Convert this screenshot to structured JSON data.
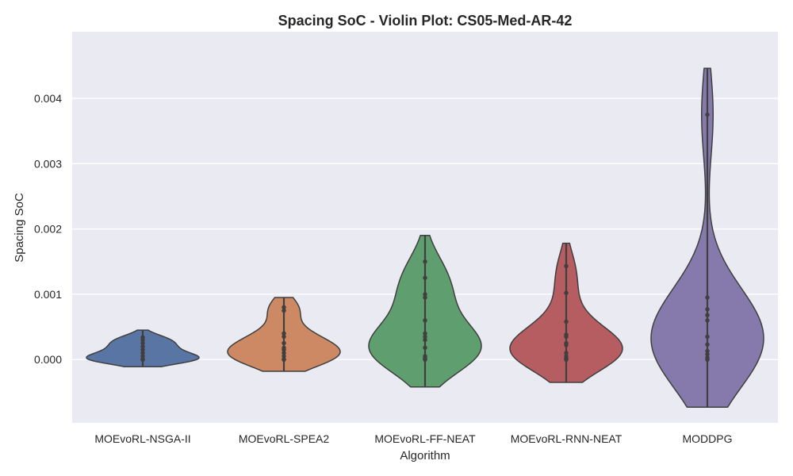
{
  "chart_data": {
    "type": "violin",
    "title": "Spacing SoC - Violin Plot: CS05-Med-AR-42",
    "xlabel": "Algorithm",
    "ylabel": "Spacing SoC",
    "ylim": [
      -0.00097,
      0.00502
    ],
    "yticks": [
      "0.000",
      "0.001",
      "0.002",
      "0.003",
      "0.004"
    ],
    "ytick_values": [
      0,
      0.001,
      0.002,
      0.003,
      0.004
    ],
    "grid": true,
    "categories": [
      "MOEvoRL-NSGA-II",
      "MOEvoRL-SPEA2",
      "MOEvoRL-FF-NEAT",
      "MOEvoRL-RNN-NEAT",
      "MODDPG"
    ],
    "series": [
      {
        "name": "MOEvoRL-NSGA-II",
        "color": "#5875a4",
        "extent": [
          -0.00011,
          0.00045
        ],
        "points": [
          0,
          0,
          0,
          0,
          0,
          5e-05,
          0.0001,
          0.00015,
          0.0002,
          0.00025,
          0.0003,
          0.00034
        ]
      },
      {
        "name": "MOEvoRL-SPEA2",
        "color": "#cc8963",
        "extent": [
          -0.00018,
          0.00095
        ],
        "points": [
          0,
          0,
          0,
          5e-05,
          0.0001,
          0.00015,
          0.00018,
          0.00025,
          0.00035,
          0.0004,
          0.00075,
          0.0008
        ]
      },
      {
        "name": "MOEvoRL-FF-NEAT",
        "color": "#5f9e6e",
        "extent": [
          -0.00042,
          0.0019
        ],
        "points": [
          0,
          0,
          2e-05,
          5e-05,
          0.00018,
          0.0003,
          0.00035,
          0.0004,
          0.0006,
          0.00095,
          0.001,
          0.00125,
          0.0015
        ]
      },
      {
        "name": "MOEvoRL-RNN-NEAT",
        "color": "#b55d60",
        "extent": [
          -0.00035,
          0.00178
        ],
        "points": [
          0,
          0,
          2e-05,
          5e-05,
          0.0001,
          0.00022,
          0.00025,
          0.00035,
          0.00038,
          0.00058,
          0.00102,
          0.00143
        ]
      },
      {
        "name": "MODDPG",
        "color": "#857aab",
        "extent": [
          -0.00073,
          0.00446
        ],
        "points": [
          0,
          0,
          3e-05,
          8e-05,
          0.00013,
          0.00023,
          0.00035,
          0.0006,
          0.00068,
          0.00077,
          0.00095,
          0.00375
        ]
      }
    ]
  }
}
